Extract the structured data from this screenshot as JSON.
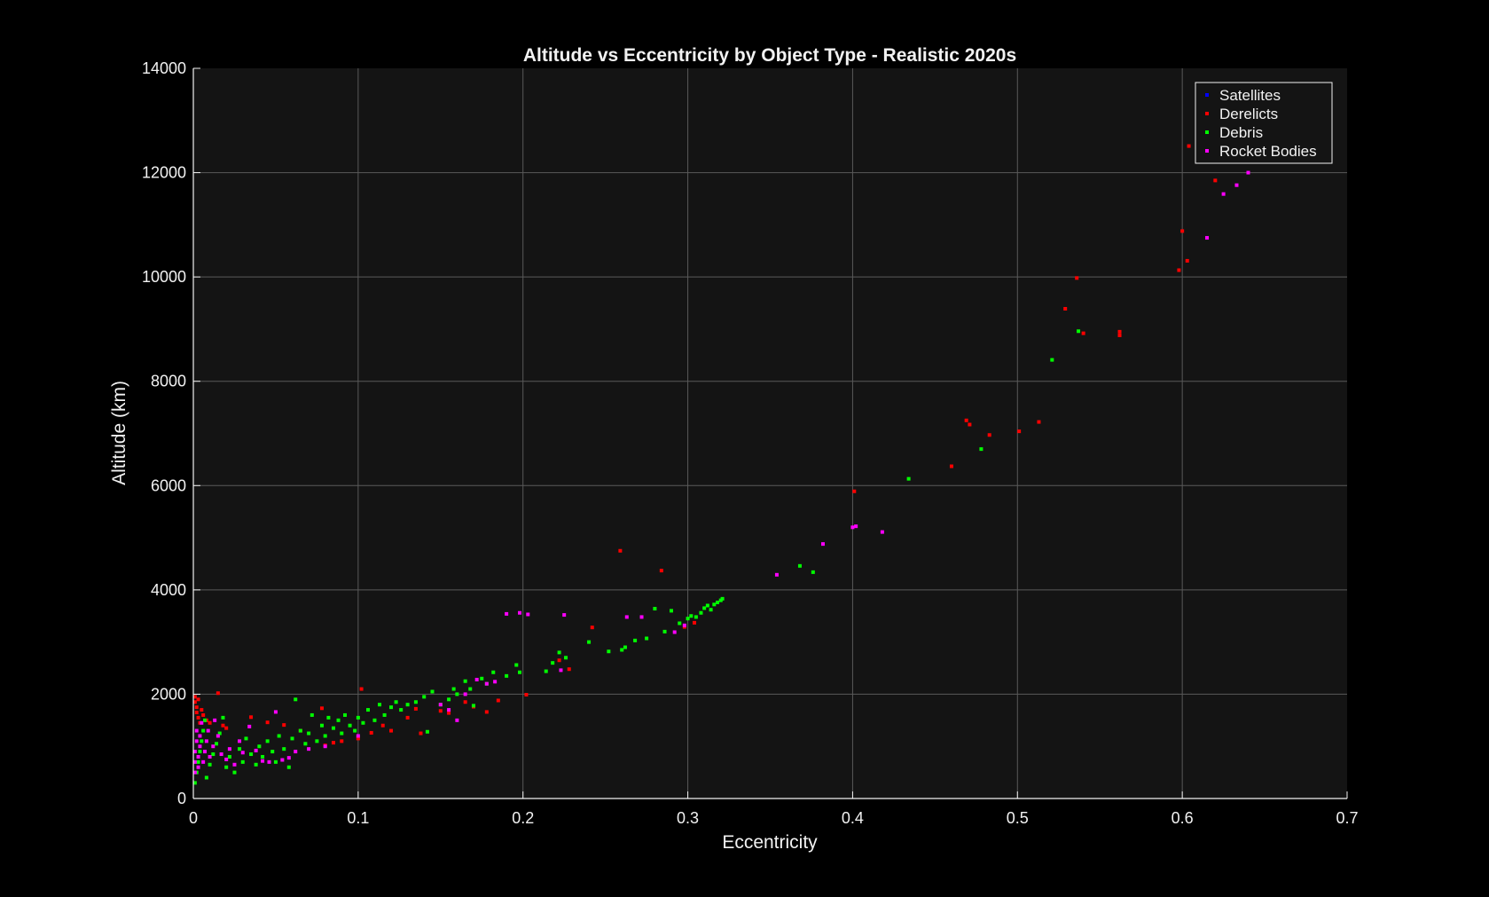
{
  "chart_data": {
    "type": "scatter",
    "title": "Altitude vs Eccentricity by Object Type - Realistic 2020s",
    "xlabel": "Eccentricity",
    "ylabel": "Altitude (km)",
    "xlim": [
      0,
      0.7
    ],
    "ylim": [
      0,
      14000
    ],
    "xticks": [
      "0",
      "0.1",
      "0.2",
      "0.3",
      "0.4",
      "0.5",
      "0.6",
      "0.7"
    ],
    "yticks": [
      "0",
      "2000",
      "4000",
      "6000",
      "8000",
      "10000",
      "12000",
      "14000"
    ],
    "grid": true,
    "background": "#141414",
    "legend_position": "top-right",
    "series": [
      {
        "name": "Satellites",
        "color": "#0000ff",
        "points": []
      },
      {
        "name": "Derelicts",
        "color": "#ff0000",
        "points": [
          [
            0.001,
            1950
          ],
          [
            0.001,
            1850
          ],
          [
            0.002,
            1750
          ],
          [
            0.002,
            1650
          ],
          [
            0.003,
            1550
          ],
          [
            0.004,
            1450
          ],
          [
            0.003,
            1900
          ],
          [
            0.005,
            1700
          ],
          [
            0.006,
            1600
          ],
          [
            0.008,
            1500
          ],
          [
            0.01,
            1450
          ],
          [
            0.015,
            2020
          ],
          [
            0.018,
            1400
          ],
          [
            0.02,
            1350
          ],
          [
            0.035,
            1560
          ],
          [
            0.045,
            1460
          ],
          [
            0.055,
            1410
          ],
          [
            0.065,
            1300
          ],
          [
            0.078,
            1730
          ],
          [
            0.08,
            1020
          ],
          [
            0.085,
            1070
          ],
          [
            0.09,
            1100
          ],
          [
            0.1,
            1150
          ],
          [
            0.102,
            2100
          ],
          [
            0.108,
            1260
          ],
          [
            0.115,
            1400
          ],
          [
            0.12,
            1300
          ],
          [
            0.13,
            1550
          ],
          [
            0.135,
            1720
          ],
          [
            0.138,
            1250
          ],
          [
            0.15,
            1680
          ],
          [
            0.155,
            1640
          ],
          [
            0.165,
            1850
          ],
          [
            0.17,
            1760
          ],
          [
            0.178,
            1660
          ],
          [
            0.185,
            1880
          ],
          [
            0.202,
            1990
          ],
          [
            0.222,
            2650
          ],
          [
            0.228,
            2480
          ],
          [
            0.242,
            3280
          ],
          [
            0.259,
            4750
          ],
          [
            0.284,
            4370
          ],
          [
            0.298,
            3290
          ],
          [
            0.304,
            3370
          ],
          [
            0.401,
            5890
          ],
          [
            0.46,
            6370
          ],
          [
            0.469,
            7250
          ],
          [
            0.471,
            7170
          ],
          [
            0.483,
            6970
          ],
          [
            0.501,
            7040
          ],
          [
            0.513,
            7220
          ],
          [
            0.529,
            9390
          ],
          [
            0.536,
            9980
          ],
          [
            0.54,
            8920
          ],
          [
            0.562,
            8950
          ],
          [
            0.562,
            8880
          ],
          [
            0.598,
            10130
          ],
          [
            0.6,
            10880
          ],
          [
            0.603,
            10310
          ],
          [
            0.604,
            12510
          ],
          [
            0.62,
            11850
          ]
        ]
      },
      {
        "name": "Debris",
        "color": "#00ff00",
        "points": [
          [
            0.001,
            300
          ],
          [
            0.002,
            500
          ],
          [
            0.003,
            700
          ],
          [
            0.004,
            900
          ],
          [
            0.005,
            1100
          ],
          [
            0.006,
            1300
          ],
          [
            0.007,
            1500
          ],
          [
            0.008,
            400
          ],
          [
            0.01,
            650
          ],
          [
            0.012,
            850
          ],
          [
            0.014,
            1050
          ],
          [
            0.016,
            1250
          ],
          [
            0.018,
            1550
          ],
          [
            0.02,
            600
          ],
          [
            0.022,
            800
          ],
          [
            0.025,
            500
          ],
          [
            0.028,
            950
          ],
          [
            0.03,
            700
          ],
          [
            0.032,
            1150
          ],
          [
            0.035,
            850
          ],
          [
            0.038,
            650
          ],
          [
            0.04,
            1000
          ],
          [
            0.042,
            800
          ],
          [
            0.045,
            1100
          ],
          [
            0.048,
            900
          ],
          [
            0.05,
            700
          ],
          [
            0.052,
            1200
          ],
          [
            0.055,
            950
          ],
          [
            0.058,
            600
          ],
          [
            0.06,
            1150
          ],
          [
            0.062,
            1900
          ],
          [
            0.065,
            1300
          ],
          [
            0.068,
            1050
          ],
          [
            0.07,
            1250
          ],
          [
            0.072,
            1600
          ],
          [
            0.075,
            1100
          ],
          [
            0.078,
            1400
          ],
          [
            0.08,
            1200
          ],
          [
            0.082,
            1550
          ],
          [
            0.085,
            1350
          ],
          [
            0.088,
            1500
          ],
          [
            0.09,
            1250
          ],
          [
            0.092,
            1600
          ],
          [
            0.095,
            1400
          ],
          [
            0.098,
            1300
          ],
          [
            0.1,
            1550
          ],
          [
            0.103,
            1450
          ],
          [
            0.106,
            1700
          ],
          [
            0.11,
            1500
          ],
          [
            0.113,
            1800
          ],
          [
            0.116,
            1600
          ],
          [
            0.12,
            1750
          ],
          [
            0.123,
            1850
          ],
          [
            0.126,
            1700
          ],
          [
            0.13,
            1800
          ],
          [
            0.135,
            1850
          ],
          [
            0.14,
            1950
          ],
          [
            0.142,
            1280
          ],
          [
            0.145,
            2050
          ],
          [
            0.15,
            1800
          ],
          [
            0.155,
            1900
          ],
          [
            0.158,
            2100
          ],
          [
            0.16,
            2000
          ],
          [
            0.165,
            2250
          ],
          [
            0.168,
            2100
          ],
          [
            0.17,
            1780
          ],
          [
            0.175,
            2300
          ],
          [
            0.178,
            2200
          ],
          [
            0.182,
            2420
          ],
          [
            0.19,
            2350
          ],
          [
            0.196,
            2560
          ],
          [
            0.198,
            2420
          ],
          [
            0.214,
            2440
          ],
          [
            0.218,
            2600
          ],
          [
            0.222,
            2800
          ],
          [
            0.226,
            2700
          ],
          [
            0.24,
            3000
          ],
          [
            0.252,
            2820
          ],
          [
            0.26,
            2850
          ],
          [
            0.262,
            2900
          ],
          [
            0.268,
            3030
          ],
          [
            0.275,
            3070
          ],
          [
            0.28,
            3640
          ],
          [
            0.286,
            3200
          ],
          [
            0.29,
            3600
          ],
          [
            0.295,
            3360
          ],
          [
            0.3,
            3450
          ],
          [
            0.302,
            3500
          ],
          [
            0.305,
            3480
          ],
          [
            0.308,
            3560
          ],
          [
            0.31,
            3650
          ],
          [
            0.312,
            3700
          ],
          [
            0.314,
            3620
          ],
          [
            0.316,
            3720
          ],
          [
            0.318,
            3760
          ],
          [
            0.32,
            3800
          ],
          [
            0.321,
            3830
          ],
          [
            0.368,
            4460
          ],
          [
            0.376,
            4340
          ],
          [
            0.434,
            6130
          ],
          [
            0.478,
            6700
          ],
          [
            0.521,
            8410
          ],
          [
            0.537,
            8960
          ]
        ]
      },
      {
        "name": "Rocket Bodies",
        "color": "#ff00ff",
        "points": [
          [
            0.001,
            500
          ],
          [
            0.001,
            700
          ],
          [
            0.001,
            900
          ],
          [
            0.002,
            1100
          ],
          [
            0.002,
            1300
          ],
          [
            0.003,
            600
          ],
          [
            0.003,
            800
          ],
          [
            0.004,
            1000
          ],
          [
            0.004,
            1200
          ],
          [
            0.005,
            1450
          ],
          [
            0.006,
            700
          ],
          [
            0.007,
            900
          ],
          [
            0.008,
            1100
          ],
          [
            0.009,
            1300
          ],
          [
            0.01,
            800
          ],
          [
            0.012,
            1000
          ],
          [
            0.013,
            1500
          ],
          [
            0.015,
            1200
          ],
          [
            0.017,
            850
          ],
          [
            0.02,
            750
          ],
          [
            0.022,
            950
          ],
          [
            0.025,
            650
          ],
          [
            0.028,
            1100
          ],
          [
            0.03,
            880
          ],
          [
            0.034,
            1380
          ],
          [
            0.038,
            920
          ],
          [
            0.042,
            720
          ],
          [
            0.046,
            700
          ],
          [
            0.05,
            1660
          ],
          [
            0.054,
            740
          ],
          [
            0.058,
            780
          ],
          [
            0.062,
            900
          ],
          [
            0.07,
            950
          ],
          [
            0.08,
            1000
          ],
          [
            0.1,
            1200
          ],
          [
            0.15,
            1800
          ],
          [
            0.155,
            1700
          ],
          [
            0.16,
            1500
          ],
          [
            0.165,
            2000
          ],
          [
            0.172,
            2280
          ],
          [
            0.178,
            2200
          ],
          [
            0.183,
            2240
          ],
          [
            0.19,
            3540
          ],
          [
            0.198,
            3560
          ],
          [
            0.203,
            3530
          ],
          [
            0.223,
            2460
          ],
          [
            0.225,
            3520
          ],
          [
            0.263,
            3480
          ],
          [
            0.272,
            3480
          ],
          [
            0.292,
            3190
          ],
          [
            0.298,
            3320
          ],
          [
            0.354,
            4290
          ],
          [
            0.382,
            4880
          ],
          [
            0.4,
            5200
          ],
          [
            0.402,
            5220
          ],
          [
            0.418,
            5110
          ],
          [
            0.615,
            10750
          ],
          [
            0.625,
            11590
          ],
          [
            0.633,
            11760
          ],
          [
            0.64,
            12000
          ]
        ]
      }
    ]
  }
}
